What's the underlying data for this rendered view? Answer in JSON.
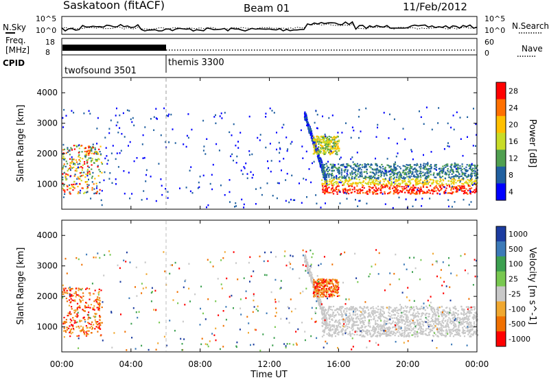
{
  "header": {
    "station": "Saskatoon (fitACF)",
    "beam": "Beam 01",
    "date": "11/Feb/2012"
  },
  "labels": {
    "nsky": "N.Sky",
    "nsearch": "N.Search",
    "freq_line1": "Freq.",
    "freq_line2": "[MHz]",
    "nave": "Nave",
    "cpid": "CPID"
  },
  "noise_panel": {
    "left_ticks": [
      "10^5",
      "10^0"
    ],
    "right_ticks": [
      "10^5",
      "10^0"
    ]
  },
  "freq_panel": {
    "left_ticks": [
      "18",
      "8"
    ],
    "right_ticks": [
      "60",
      "0"
    ]
  },
  "cpid_panel": {
    "segments": [
      {
        "name": "twofsound 3501",
        "start_hour": 0,
        "end_hour": 6
      },
      {
        "name": "themis 3300",
        "start_hour": 6,
        "end_hour": 24
      }
    ]
  },
  "chart_data": [
    {
      "type": "heatmap",
      "parameter": "Power",
      "ylabel": "Slant Range [km]",
      "xlabel": "Time UT",
      "xlim_hours": [
        0,
        24
      ],
      "ylim": [
        180,
        4500
      ],
      "y_ticks": [
        "4000",
        "3000",
        "2000",
        "1000"
      ],
      "colorbar_label": "Power [dB]",
      "colorbar_ticks": [
        "28",
        "24",
        "20",
        "16",
        "12",
        "8",
        "4"
      ],
      "colorbar_colors": [
        "#ff0000",
        "#ff7000",
        "#ffc000",
        "#c8dc28",
        "#50a050",
        "#2060a0",
        "#0000ff"
      ],
      "scatter_regions": [
        {
          "t": [
            0.0,
            2.3
          ],
          "r": [
            700,
            2300
          ],
          "level": "mixed"
        },
        {
          "t": [
            14.0,
            15.3
          ],
          "r": [
            1000,
            3300
          ],
          "level": "low"
        },
        {
          "t": [
            14.5,
            16.0
          ],
          "r": [
            2000,
            2600
          ],
          "level": "mid"
        },
        {
          "t": [
            15.0,
            24.0
          ],
          "r": [
            700,
            1700
          ],
          "level": "high"
        }
      ]
    },
    {
      "type": "heatmap",
      "parameter": "Velocity",
      "ylabel": "Slant Range [km]",
      "xlabel": "Time UT",
      "xlim_hours": [
        0,
        24
      ],
      "ylim": [
        180,
        4500
      ],
      "y_ticks": [
        "4000",
        "3000",
        "2000",
        "1000"
      ],
      "colorbar_label": "Velocity [m s^-1]",
      "colorbar_ticks": [
        "1000",
        "500",
        "100",
        "25",
        "-25",
        "-100",
        "-500",
        "-1000"
      ],
      "colorbar_colors": [
        "#1c3ca0",
        "#3c7ab8",
        "#3ca050",
        "#78c850",
        "#c8c8c8",
        "#f0a830",
        "#f07000",
        "#ff0000"
      ],
      "scatter_regions": [
        {
          "t": [
            0.0,
            2.3
          ],
          "r": [
            700,
            2300
          ],
          "level": "negative"
        },
        {
          "t": [
            14.0,
            15.3
          ],
          "r": [
            1000,
            3300
          ],
          "level": "ground"
        },
        {
          "t": [
            14.5,
            16.0
          ],
          "r": [
            2000,
            2600
          ],
          "level": "negative"
        },
        {
          "t": [
            15.0,
            24.0
          ],
          "r": [
            700,
            1700
          ],
          "level": "ground"
        }
      ]
    }
  ],
  "time_axis": {
    "labels": [
      "00:00",
      "04:00",
      "08:00",
      "12:00",
      "16:00",
      "20:00",
      "00:00"
    ],
    "title": "Time UT"
  },
  "colors": {
    "power_high": "#e00000",
    "ground_gray": "#c0c0c0"
  }
}
